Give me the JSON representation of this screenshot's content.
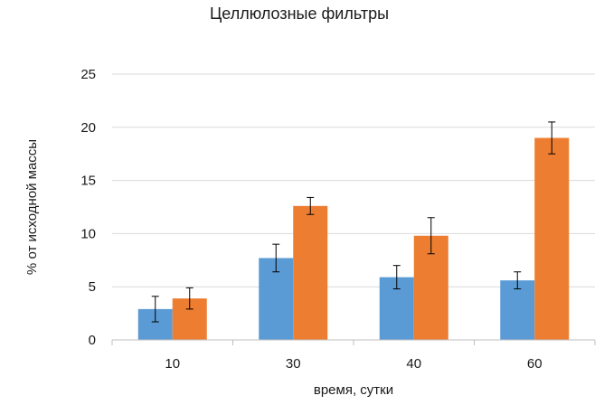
{
  "chart_data": {
    "type": "bar",
    "title": "Целлюлозные фильтры",
    "xlabel": "время, сутки",
    "ylabel": "% от исходной массы",
    "categories": [
      "10",
      "30",
      "40",
      "60"
    ],
    "ylim": [
      0,
      25
    ],
    "yticks": [
      0,
      5,
      10,
      15,
      20,
      25
    ],
    "grid": "horizontal",
    "legend": "none",
    "series": [
      {
        "color": "#5b9bd5",
        "values": [
          2.9,
          7.7,
          5.9,
          5.6
        ],
        "errors": [
          1.2,
          1.3,
          1.1,
          0.8
        ]
      },
      {
        "color": "#ed7d31",
        "values": [
          3.9,
          12.6,
          9.8,
          19.0
        ],
        "errors": [
          1.0,
          0.8,
          1.7,
          1.5
        ]
      }
    ]
  }
}
